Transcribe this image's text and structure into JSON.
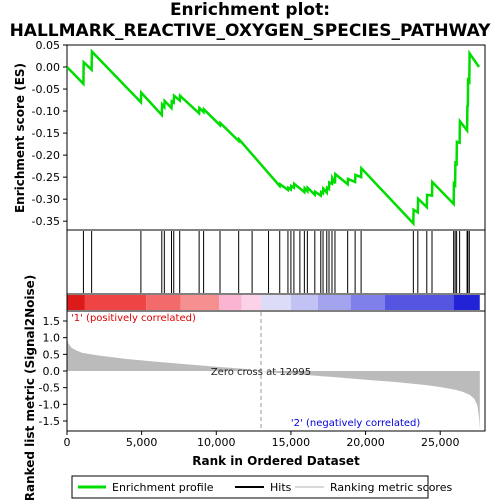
{
  "title": {
    "line1": "Enrichment plot:",
    "line2": "HALLMARK_REACTIVE_OXYGEN_SPECIES_PATHWAY"
  },
  "colors": {
    "es_line": "#00dd00",
    "hits": "#000000",
    "metric_fill": "#bbbbbb",
    "zero_line": "#999999",
    "positive_label": "#dd0000",
    "negative_label": "#0000dd"
  },
  "chart_data": [
    {
      "type": "line",
      "name": "enrichment-score-panel",
      "ylabel": "Enrichment score (ES)",
      "ylim": [
        -0.37,
        0.05
      ],
      "yticks": [
        0.05,
        0.0,
        -0.05,
        -0.1,
        -0.15,
        -0.2,
        -0.25,
        -0.3,
        -0.35
      ],
      "ytick_labels": [
        "0.05",
        "0.00",
        "-0.05",
        "-0.10",
        "-0.15",
        "-0.20",
        "-0.25",
        "-0.30",
        "-0.35"
      ],
      "xlim": [
        0,
        28000
      ],
      "grid": false,
      "series": [
        {
          "name": "Enrichment profile",
          "x": [
            0,
            1100,
            1120,
            1650,
            1670,
            4950,
            4970,
            6350,
            6370,
            6520,
            6540,
            7000,
            7020,
            7150,
            7170,
            7550,
            7570,
            8850,
            8870,
            9150,
            9170,
            10250,
            10270,
            11500,
            11520,
            14250,
            14270,
            14800,
            14820,
            15000,
            15020,
            15200,
            15220,
            15900,
            15920,
            16100,
            16120,
            16600,
            16620,
            17000,
            17020,
            17150,
            17170,
            17400,
            17420,
            17550,
            17570,
            17750,
            17770,
            17950,
            17970,
            18800,
            18820,
            19300,
            19320,
            19700,
            19720,
            23200,
            23220,
            23500,
            23520,
            24100,
            24120,
            24450,
            24470,
            25900,
            25920,
            26000,
            26020,
            26100,
            26120,
            26300,
            26320,
            26800,
            26820,
            26850,
            26870,
            26950,
            26970,
            27600
          ],
          "y": [
            0.0,
            -0.038,
            0.011,
            -0.006,
            0.035,
            -0.08,
            -0.058,
            -0.109,
            -0.085,
            -0.091,
            -0.077,
            -0.093,
            -0.078,
            -0.081,
            -0.065,
            -0.076,
            -0.065,
            -0.105,
            -0.093,
            -0.102,
            -0.096,
            -0.132,
            -0.127,
            -0.168,
            -0.164,
            -0.27,
            -0.266,
            -0.279,
            -0.274,
            -0.278,
            -0.27,
            -0.274,
            -0.265,
            -0.284,
            -0.275,
            -0.282,
            -0.274,
            -0.29,
            -0.283,
            -0.292,
            -0.284,
            -0.287,
            -0.276,
            -0.285,
            -0.274,
            -0.277,
            -0.262,
            -0.265,
            -0.252,
            -0.264,
            -0.243,
            -0.266,
            -0.254,
            -0.261,
            -0.245,
            -0.25,
            -0.23,
            -0.355,
            -0.324,
            -0.33,
            -0.299,
            -0.318,
            -0.29,
            -0.292,
            -0.261,
            -0.311,
            -0.265,
            -0.268,
            -0.218,
            -0.22,
            -0.17,
            -0.172,
            -0.123,
            -0.144,
            -0.087,
            -0.09,
            -0.03,
            -0.033,
            0.031,
            0.0
          ]
        }
      ]
    },
    {
      "type": "scatter",
      "name": "hits-panel",
      "legend_label": "Hits",
      "x": [
        1100,
        1650,
        4950,
        6350,
        6520,
        7000,
        7150,
        7550,
        8850,
        9150,
        10250,
        11500,
        12400,
        13500,
        14250,
        14800,
        15000,
        15200,
        15600,
        15900,
        16100,
        16600,
        17000,
        17150,
        17400,
        17550,
        17750,
        17950,
        18800,
        19300,
        19700,
        23200,
        23500,
        24100,
        24450,
        25900,
        26000,
        26100,
        26300,
        26800,
        26850,
        26950
      ]
    },
    {
      "type": "heatmap",
      "name": "ranked-list-colorbar",
      "segments": [
        {
          "from": 0,
          "to": 1200,
          "color": "#dd1a1a"
        },
        {
          "from": 1200,
          "to": 5300,
          "color": "#ee4444"
        },
        {
          "from": 5300,
          "to": 7600,
          "color": "#f26a6a"
        },
        {
          "from": 7600,
          "to": 10200,
          "color": "#f69090"
        },
        {
          "from": 10200,
          "to": 11700,
          "color": "#fab4d2"
        },
        {
          "from": 11700,
          "to": 13000,
          "color": "#fcd2e8"
        },
        {
          "from": 13000,
          "to": 15000,
          "color": "#dcdcf8"
        },
        {
          "from": 15000,
          "to": 16800,
          "color": "#c2c2f4"
        },
        {
          "from": 16800,
          "to": 19000,
          "color": "#a4a4ee"
        },
        {
          "from": 19000,
          "to": 21300,
          "color": "#8080ea"
        },
        {
          "from": 21300,
          "to": 25900,
          "color": "#5555e2"
        },
        {
          "from": 25900,
          "to": 27650,
          "color": "#2222d6"
        }
      ]
    },
    {
      "type": "area",
      "name": "ranked-metric-panel",
      "xlabel": "Rank in Ordered Dataset",
      "ylabel": "Ranked list metric (Signal2Noise)",
      "ylim": [
        -1.8,
        1.8
      ],
      "yticks": [
        1.5,
        1.0,
        0.5,
        0.0,
        -0.5,
        -1.0,
        -1.5
      ],
      "ytick_labels": [
        "1.5",
        "1.0",
        "0.5",
        "0.0",
        "-0.5",
        "-1.0",
        "-1.5"
      ],
      "xlim": [
        0,
        28000
      ],
      "xticks": [
        0,
        5000,
        10000,
        15000,
        20000,
        25000
      ],
      "xtick_labels": [
        "0",
        "5,000",
        "10,000",
        "15,000",
        "20,000",
        "25,000"
      ],
      "x": [
        0,
        100,
        300,
        600,
        1000,
        2000,
        4000,
        6000,
        8000,
        10000,
        12000,
        12995,
        14000,
        16000,
        18000,
        20000,
        22000,
        24000,
        25000,
        26000,
        26500,
        27000,
        27300,
        27500,
        27600,
        27650
      ],
      "values": [
        1.0,
        0.82,
        0.7,
        0.62,
        0.55,
        0.47,
        0.36,
        0.28,
        0.2,
        0.13,
        0.06,
        0.0,
        -0.05,
        -0.12,
        -0.19,
        -0.26,
        -0.33,
        -0.42,
        -0.48,
        -0.56,
        -0.62,
        -0.72,
        -0.85,
        -1.05,
        -1.4,
        -1.75
      ],
      "annotations": {
        "zero_cross": "Zero cross at 12995",
        "zero_cross_rank": 12995,
        "positive": "'1' (positively correlated)",
        "negative": "'2' (negatively correlated)"
      }
    }
  ],
  "legend": {
    "items": [
      {
        "label": "Enrichment profile",
        "color": "#00dd00"
      },
      {
        "label": "Hits",
        "color": "#000000"
      },
      {
        "label": "Ranking metric scores",
        "color": "#cccccc"
      }
    ]
  }
}
